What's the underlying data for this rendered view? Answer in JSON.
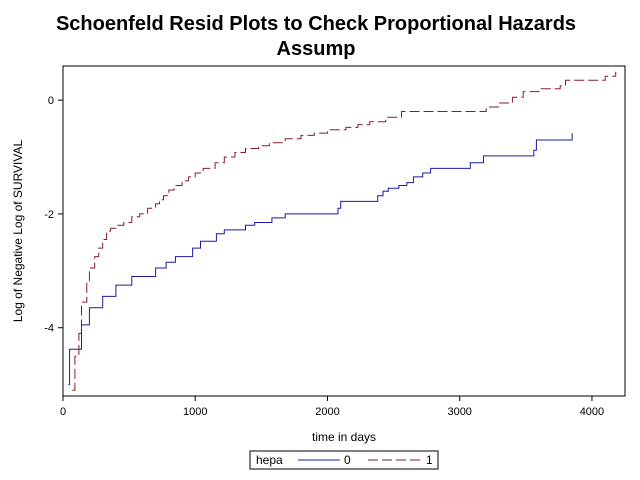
{
  "chart_data": {
    "type": "line",
    "step": true,
    "title": "Schoenfeld Resid Plots to Check Proportional  Hazards Assump",
    "xlabel": "time in days",
    "ylabel": "Log of Negative Log of SURVIVAL",
    "xlim": [
      0,
      4250
    ],
    "ylim": [
      -5.2,
      0.6
    ],
    "xticks": [
      0,
      1000,
      2000,
      3000,
      4000
    ],
    "yticks": [
      0,
      -2,
      -4
    ],
    "grid": false,
    "legend_title": "hepa",
    "legend_position": "bottom",
    "series": [
      {
        "name": "0",
        "color": "#1a1aa6",
        "dash": "solid",
        "x": [
          41,
          50,
          140,
          200,
          300,
          400,
          520,
          700,
          780,
          850,
          980,
          1040,
          1160,
          1220,
          1380,
          1450,
          1580,
          1680,
          2080,
          2100,
          2380,
          2420,
          2460,
          2540,
          2600,
          2650,
          2720,
          2780,
          3080,
          3180,
          3560,
          3580,
          3850
        ],
        "y": [
          -5.0,
          -4.38,
          -3.95,
          -3.65,
          -3.45,
          -3.25,
          -3.1,
          -2.95,
          -2.85,
          -2.75,
          -2.6,
          -2.48,
          -2.35,
          -2.28,
          -2.2,
          -2.15,
          -2.07,
          -2.0,
          -1.9,
          -1.78,
          -1.68,
          -1.6,
          -1.55,
          -1.5,
          -1.45,
          -1.35,
          -1.28,
          -1.2,
          -1.1,
          -0.98,
          -0.88,
          -0.7,
          -0.58
        ]
      },
      {
        "name": "1",
        "color": "#8b1a2e",
        "dash": "dashed",
        "x": [
          70,
          90,
          120,
          140,
          180,
          200,
          240,
          270,
          300,
          330,
          360,
          400,
          460,
          520,
          580,
          640,
          700,
          730,
          760,
          800,
          840,
          900,
          950,
          1000,
          1060,
          1150,
          1220,
          1300,
          1380,
          1480,
          1560,
          1680,
          1800,
          1900,
          2000,
          2140,
          2230,
          2320,
          2440,
          2560,
          3200,
          3300,
          3400,
          3480,
          3600,
          3760,
          3800,
          4100,
          4180
        ],
        "y": [
          -5.1,
          -4.5,
          -4.1,
          -3.55,
          -3.2,
          -2.95,
          -2.75,
          -2.6,
          -2.45,
          -2.3,
          -2.25,
          -2.2,
          -2.15,
          -2.05,
          -2.0,
          -1.9,
          -1.82,
          -1.75,
          -1.68,
          -1.58,
          -1.5,
          -1.42,
          -1.35,
          -1.28,
          -1.2,
          -1.1,
          -1.0,
          -0.92,
          -0.85,
          -0.8,
          -0.75,
          -0.68,
          -0.62,
          -0.58,
          -0.52,
          -0.48,
          -0.43,
          -0.38,
          -0.3,
          -0.2,
          -0.12,
          -0.05,
          0.05,
          0.15,
          0.2,
          0.25,
          0.35,
          0.42,
          0.5
        ]
      }
    ]
  }
}
